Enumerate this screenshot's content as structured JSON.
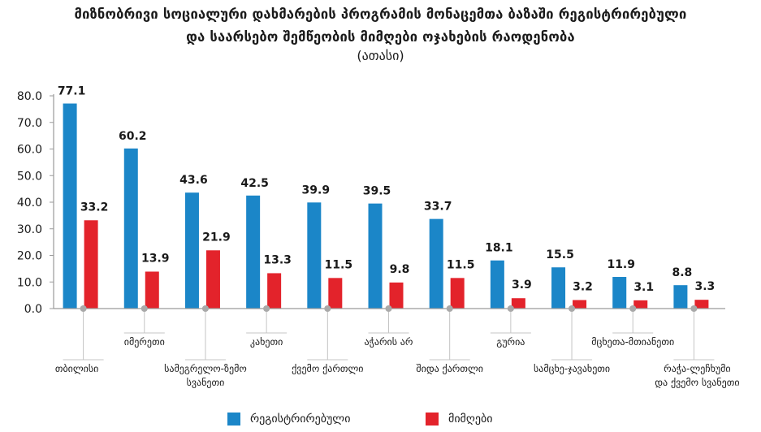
{
  "header": {
    "title_line1": "მიზნობრივი სოციალური დახმარების პროგრამის მონაცემთა ბაზაში რეგისტრირებული",
    "title_line2": "და საარსებო შემწეობის მიმღები ოჯახების რაოდენობა",
    "subtitle": "(ათასი)"
  },
  "colors": {
    "registered": "#1b86c8",
    "recipients": "#e3232b",
    "axis": "#9a9a9a"
  },
  "chart_data": {
    "type": "bar",
    "title": "მიზნობრივი სოციალური დახმარების პროგრამის მონაცემთა ბაზაში რეგისტრირებული და საარსებო შემწეობის მიმღები ოჯახების რაოდენობა",
    "subtitle": "(ათასი)",
    "xlabel": "",
    "ylabel": "",
    "ylim": [
      0,
      80
    ],
    "yticks": [
      "0.0",
      "10.0",
      "20.0",
      "30.0",
      "40.0",
      "50.0",
      "60.0",
      "70.0",
      "80.0"
    ],
    "grid": false,
    "legend_position": "bottom",
    "categories": [
      [
        "თბილისი"
      ],
      [
        "იმერეთი"
      ],
      [
        "სამეგრელო-ზემო",
        "სვანეთი"
      ],
      [
        "კახეთი"
      ],
      [
        "ქვემო ქართლი"
      ],
      [
        "აჭარის არ"
      ],
      [
        "შიდა ქართლი"
      ],
      [
        "გურია"
      ],
      [
        "სამცხე-ჯავახეთი"
      ],
      [
        "მცხეთა-მთიანეთი"
      ],
      [
        "რაჭა-ლეჩხუმი",
        "და ქვემო სვანეთი"
      ]
    ],
    "series": [
      {
        "name": "რეგისტრირებული",
        "values": [
          77.1,
          60.2,
          43.6,
          42.5,
          39.9,
          39.5,
          33.7,
          18.1,
          15.5,
          11.9,
          8.8
        ]
      },
      {
        "name": "მიმღები",
        "values": [
          33.2,
          13.9,
          21.9,
          13.3,
          11.5,
          9.8,
          11.5,
          3.9,
          3.2,
          3.1,
          3.3
        ]
      }
    ]
  },
  "legend": {
    "registered_label": "რეგისტრირებული",
    "recipients_label": "მიმღები"
  }
}
